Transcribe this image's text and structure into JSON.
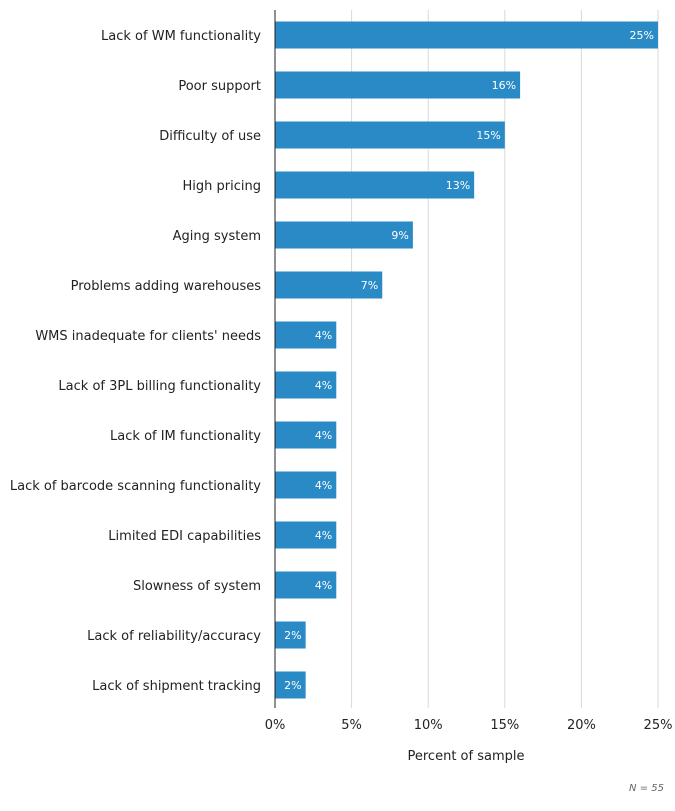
{
  "chart_data": {
    "type": "bar",
    "orientation": "horizontal",
    "categories": [
      "Lack of WM functionality",
      "Poor support",
      "Difficulty of use",
      "High pricing",
      "Aging system",
      "Problems adding warehouses",
      "WMS inadequate for clients' needs",
      "Lack of 3PL billing functionality",
      "Lack of IM functionality",
      "Lack of barcode scanning functionality",
      "Limited EDI capabilities",
      "Slowness of system",
      "Lack of reliability/accuracy",
      "Lack of shipment tracking"
    ],
    "values": [
      25,
      16,
      15,
      13,
      9,
      7,
      4,
      4,
      4,
      4,
      4,
      4,
      2,
      2
    ],
    "data_labels": [
      "25%",
      "16%",
      "15%",
      "13%",
      "9%",
      "7%",
      "4%",
      "4%",
      "4%",
      "4%",
      "4%",
      "4%",
      "2%",
      "2%"
    ],
    "xlabel": "Percent of sample",
    "ylabel": "",
    "xlim": [
      0,
      25
    ],
    "xticks": [
      0,
      5,
      10,
      15,
      20,
      25
    ],
    "xtick_labels": [
      "0%",
      "5%",
      "10%",
      "15%",
      "20%",
      "25%"
    ],
    "grid": true,
    "bar_color": "#2a8ac6",
    "note": "N = 55"
  }
}
